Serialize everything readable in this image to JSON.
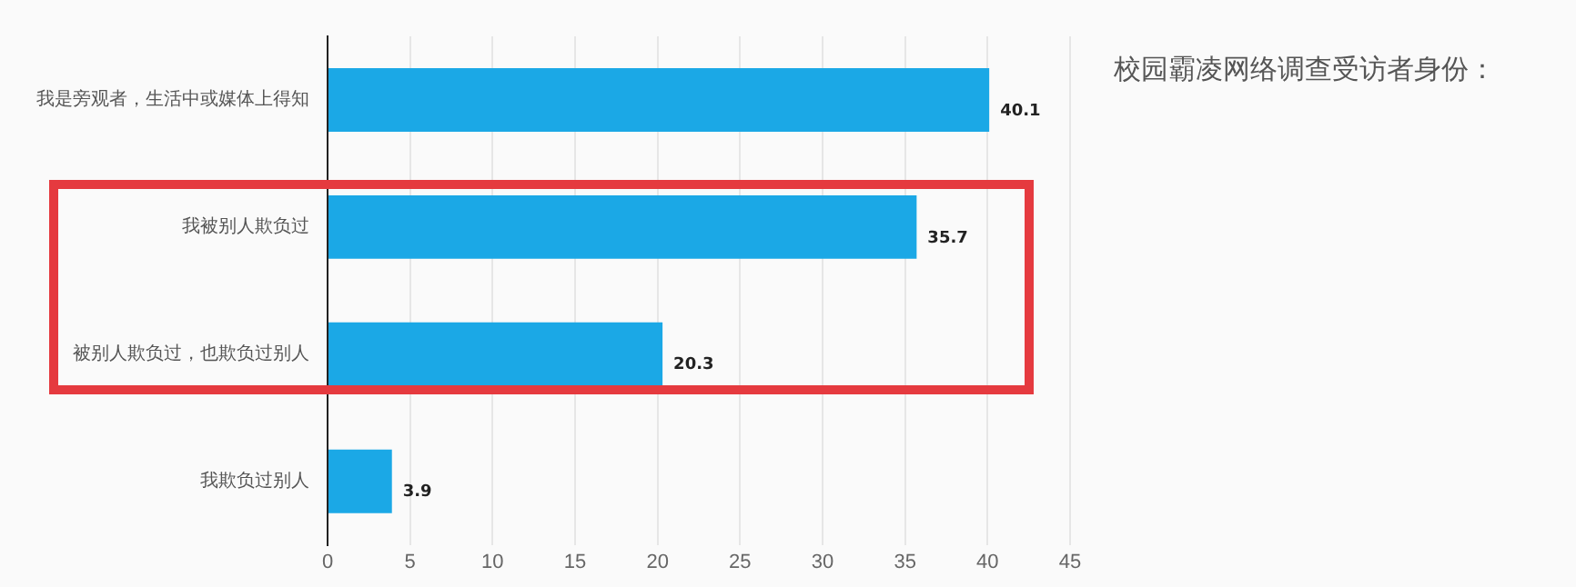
{
  "chart_data": {
    "type": "bar",
    "orientation": "horizontal",
    "title": "校园霸凌网络调查受访者身份：",
    "categories": [
      "我是旁观者，生活中或媒体上得知",
      "我被别人欺负过",
      "被别人欺负过，也欺负过别人",
      "我欺负过别人"
    ],
    "values": [
      40.1,
      35.7,
      20.3,
      3.9
    ],
    "color": "#1ba8e6",
    "xlim": [
      0,
      45
    ],
    "xticks": [
      0,
      5,
      10,
      15,
      20,
      25,
      30,
      35,
      40,
      45
    ],
    "grid": "x",
    "data_labels": true,
    "legend": false
  }
}
